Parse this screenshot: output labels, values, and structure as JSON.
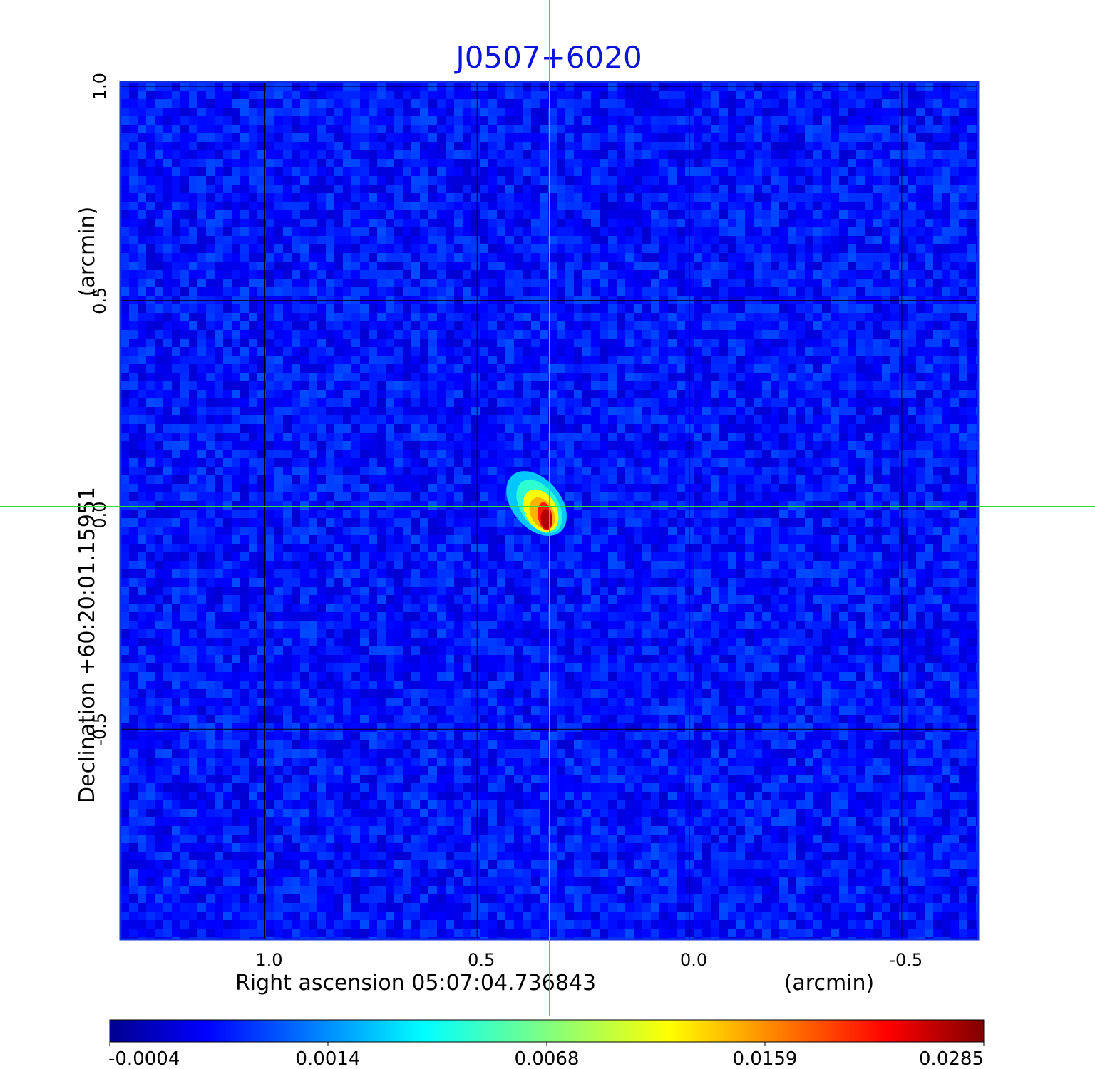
{
  "chart_data": {
    "type": "heatmap",
    "title": "J0507+6020",
    "xlabel": "Right ascension  05:07:04.736843",
    "xunit": "(arcmin)",
    "ylabel": "Declination  +60:20:01.15951",
    "yunit": "(arcmin)",
    "xlim": [
      1.34,
      -0.68
    ],
    "ylim": [
      -0.99,
      1.01
    ],
    "xticks": [
      {
        "value": 1.0,
        "label": "1.0"
      },
      {
        "value": 0.5,
        "label": "0.5"
      },
      {
        "value": 0.0,
        "label": "0.0"
      },
      {
        "value": -0.5,
        "label": "-0.5"
      }
    ],
    "yticks": [
      {
        "value": -0.5,
        "label": "-0.5"
      },
      {
        "value": 0.0,
        "label": "0.0"
      },
      {
        "value": 0.5,
        "label": "0.5"
      },
      {
        "value": 1.0,
        "label": "1.0"
      }
    ],
    "grid": true,
    "crosshair": {
      "x": 0.33,
      "y": 0.02,
      "color": "#33dd33"
    },
    "source": {
      "x": 0.34,
      "y": 0.0,
      "peak": 0.0285
    },
    "colorbar": {
      "position": "bottom",
      "colormap": "jet",
      "min": -0.0004,
      "max": 0.0285,
      "ticks": [
        {
          "value": -0.0004,
          "label": "-0.0004"
        },
        {
          "value": 0.0014,
          "label": "0.0014"
        },
        {
          "value": 0.0068,
          "label": "0.0068"
        },
        {
          "value": 0.0159,
          "label": "0.0159"
        },
        {
          "value": 0.0285,
          "label": "0.0285"
        }
      ]
    },
    "colors": {
      "frame": "#1030e0",
      "grid": "#000000",
      "crosshair": "#33dd33",
      "title": "#0a14d8"
    }
  }
}
